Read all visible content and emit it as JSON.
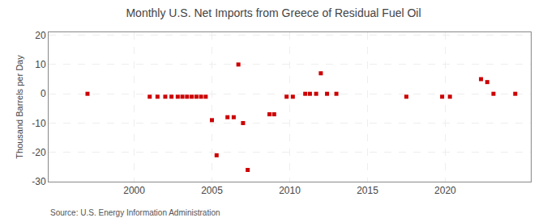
{
  "chart_data": {
    "type": "scatter",
    "title": "Monthly U.S. Net Imports from Greece of Residual Fuel Oil",
    "ylabel": "Thousand Barrels per Day",
    "annotations": [
      "Source: U.S. Energy Information Administration"
    ],
    "x": [
      1997.0,
      2001.0,
      2001.5,
      2002.0,
      2002.4,
      2002.8,
      2003.1,
      2003.4,
      2003.7,
      2004.0,
      2004.3,
      2004.6,
      2005.0,
      2005.3,
      2006.0,
      2006.4,
      2006.7,
      2007.0,
      2007.3,
      2008.7,
      2009.0,
      2009.8,
      2010.2,
      2011.0,
      2011.3,
      2011.7,
      2012.0,
      2012.4,
      2013.0,
      2017.5,
      2019.8,
      2020.3,
      2022.3,
      2022.7,
      2023.1,
      2024.5
    ],
    "values": [
      0,
      -1,
      -1,
      -1,
      -1,
      -1,
      -1,
      -1,
      -1,
      -1,
      -1,
      -1,
      -9,
      -21,
      -8,
      -8,
      10,
      -10,
      -26,
      -7,
      -7,
      -1,
      -1,
      0,
      0,
      0,
      7,
      0,
      0,
      -1,
      -1,
      -1,
      5,
      4,
      0,
      0
    ],
    "color": "#cc0000",
    "marker": "square",
    "xlim": [
      1994.5,
      2025.5
    ],
    "ylim": [
      -30,
      21
    ],
    "xticks": [
      2000,
      2005,
      2010,
      2015,
      2020
    ],
    "yticks": [
      -30,
      -20,
      -10,
      0,
      10,
      20
    ],
    "grid": true
  }
}
